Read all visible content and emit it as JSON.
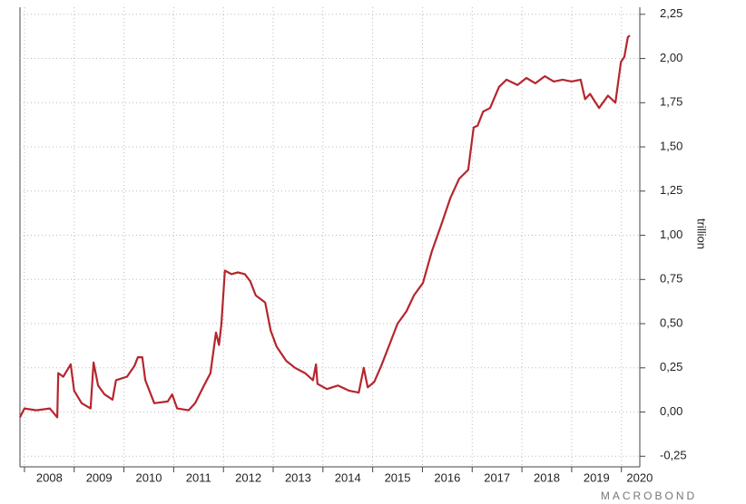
{
  "chart_data": {
    "type": "line",
    "y_label": "trillion",
    "watermark": "MACROBOND",
    "x": [
      2007.91,
      2008.0,
      2008.24,
      2008.51,
      2008.66,
      2008.68,
      2008.78,
      2008.93,
      2009.0,
      2009.15,
      2009.33,
      2009.39,
      2009.48,
      2009.61,
      2009.77,
      2009.84,
      2010.06,
      2010.21,
      2010.28,
      2010.37,
      2010.43,
      2010.61,
      2010.88,
      2010.97,
      2011.07,
      2011.3,
      2011.43,
      2011.61,
      2011.74,
      2011.85,
      2011.91,
      2011.96,
      2012.03,
      2012.16,
      2012.29,
      2012.43,
      2012.54,
      2012.65,
      2012.84,
      2012.95,
      2013.07,
      2013.26,
      2013.44,
      2013.64,
      2013.8,
      2013.86,
      2013.89,
      2014.08,
      2014.3,
      2014.53,
      2014.72,
      2014.82,
      2014.9,
      2015.03,
      2015.17,
      2015.35,
      2015.5,
      2015.68,
      2015.83,
      2016.01,
      2016.19,
      2016.38,
      2016.56,
      2016.74,
      2016.92,
      2017.03,
      2017.11,
      2017.22,
      2017.36,
      2017.54,
      2017.69,
      2017.91,
      2018.09,
      2018.27,
      2018.46,
      2018.64,
      2018.82,
      2019.0,
      2019.18,
      2019.27,
      2019.37,
      2019.55,
      2019.73,
      2019.88,
      2019.99,
      2020.06,
      2020.13,
      2020.17
    ],
    "series": [
      {
        "color": "#b5262e",
        "values": [
          -0.03,
          0.02,
          0.01,
          0.02,
          -0.03,
          0.22,
          0.2,
          0.27,
          0.12,
          0.05,
          0.02,
          0.28,
          0.15,
          0.1,
          0.07,
          0.18,
          0.2,
          0.26,
          0.31,
          0.31,
          0.18,
          0.05,
          0.06,
          0.1,
          0.02,
          0.01,
          0.05,
          0.15,
          0.22,
          0.45,
          0.38,
          0.5,
          0.8,
          0.78,
          0.79,
          0.78,
          0.74,
          0.66,
          0.62,
          0.46,
          0.37,
          0.29,
          0.25,
          0.22,
          0.18,
          0.27,
          0.16,
          0.13,
          0.15,
          0.12,
          0.11,
          0.25,
          0.14,
          0.17,
          0.26,
          0.39,
          0.5,
          0.57,
          0.66,
          0.73,
          0.91,
          1.06,
          1.21,
          1.32,
          1.37,
          1.61,
          1.62,
          1.7,
          1.72,
          1.84,
          1.88,
          1.85,
          1.89,
          1.86,
          1.9,
          1.87,
          1.88,
          1.87,
          1.88,
          1.77,
          1.8,
          1.72,
          1.79,
          1.75,
          1.98,
          2.01,
          2.12,
          2.13
        ]
      }
    ],
    "xlim": [
      2007.91,
      2020.37
    ],
    "xticks": [
      {
        "value": 2008,
        "label": "2008"
      },
      {
        "value": 2009,
        "label": "2009"
      },
      {
        "value": 2010,
        "label": "2010"
      },
      {
        "value": 2011,
        "label": "2011"
      },
      {
        "value": 2012,
        "label": "2012"
      },
      {
        "value": 2013,
        "label": "2013"
      },
      {
        "value": 2014,
        "label": "2014"
      },
      {
        "value": 2015,
        "label": "2015"
      },
      {
        "value": 2016,
        "label": "2016"
      },
      {
        "value": 2017,
        "label": "2017"
      },
      {
        "value": 2018,
        "label": "2018"
      },
      {
        "value": 2019,
        "label": "2019"
      },
      {
        "value": 2020,
        "label": "2020"
      }
    ],
    "ylim": [
      -0.31,
      2.29
    ],
    "yticks": [
      {
        "value": -0.25,
        "label": "-0,25"
      },
      {
        "value": 0,
        "label": "0,00"
      },
      {
        "value": 0.25,
        "label": "0,25"
      },
      {
        "value": 0.5,
        "label": "0,50"
      },
      {
        "value": 0.75,
        "label": "0,75"
      },
      {
        "value": 1,
        "label": "1,00"
      },
      {
        "value": 1.25,
        "label": "1,25"
      },
      {
        "value": 1.5,
        "label": "1,50"
      },
      {
        "value": 1.75,
        "label": "1,75"
      },
      {
        "value": 2,
        "label": "2,00"
      },
      {
        "value": 2.25,
        "label": "2,25"
      }
    ],
    "grid": true
  }
}
